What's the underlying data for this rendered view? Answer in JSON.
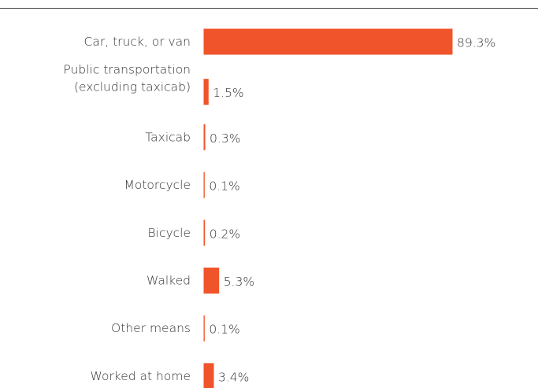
{
  "chart_data": {
    "type": "bar",
    "orientation": "horizontal",
    "categories": [
      "Car, truck, or van",
      "Public transportation\n(excluding taxicab)",
      "Taxicab",
      "Motorcycle",
      "Bicycle",
      "Walked",
      "Other means",
      "Worked at home"
    ],
    "values": [
      89.3,
      1.5,
      0.3,
      0.1,
      0.2,
      5.3,
      0.1,
      3.4
    ],
    "value_labels": [
      "89.3%",
      "1.5%",
      "0.3%",
      "0.1%",
      "0.2%",
      "5.3%",
      "0.1%",
      "3.4%"
    ],
    "color": "#f0542b"
  }
}
